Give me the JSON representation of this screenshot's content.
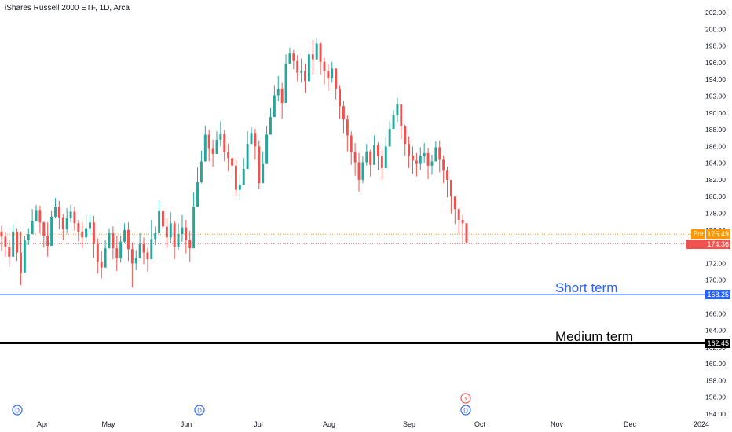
{
  "header": {
    "title": "iShares Russell 2000 ETF, 1D, Arca"
  },
  "colors": {
    "up": "#26a69a",
    "down": "#ef5350",
    "short_line": "#2962ff",
    "medium_line": "#000000",
    "pre_line": "#ff9800",
    "last_line": "#ef5350",
    "grid_text": "#131722"
  },
  "chart_data": {
    "type": "candlestick",
    "title": "iShares Russell 2000 ETF, 1D, Arca",
    "y_axis": {
      "ticks": [
        "154.00",
        "156.00",
        "158.00",
        "160.00",
        "162.00",
        "164.00",
        "166.00",
        "168.00",
        "170.00",
        "172.00",
        "174.00",
        "176.00",
        "178.00",
        "180.00",
        "182.00",
        "184.00",
        "186.00",
        "188.00",
        "190.00",
        "192.00",
        "194.00",
        "196.00",
        "198.00",
        "200.00",
        "202.00"
      ],
      "range": [
        153.4,
        203.2
      ]
    },
    "x_axis": {
      "labels": [
        "Apr",
        "May",
        "Jun",
        "Jul",
        "Aug",
        "Sep",
        "Oct",
        "Nov",
        "Dec",
        "2024"
      ]
    },
    "closes": [
      175.2,
      174.0,
      172.8,
      175.8,
      173.3,
      170.9,
      174.8,
      175.5,
      177.1,
      178.4,
      176.9,
      175.3,
      174.1,
      177.6,
      178.8,
      177.5,
      176.1,
      177.4,
      178.2,
      176.8,
      175.8,
      175.1,
      176.2,
      176.9,
      174.3,
      172.2,
      171.5,
      173.8,
      175.6,
      173.8,
      172.6,
      174.6,
      176.0,
      173.7,
      172.0,
      172.6,
      174.3,
      173.3,
      172.5,
      174.9,
      175.6,
      178.3,
      176.4,
      175.1,
      176.8,
      174.0,
      175.5,
      176.3,
      174.8,
      173.8,
      178.8,
      181.7,
      184.2,
      187.4,
      185.7,
      185.1,
      186.8,
      187.5,
      185.3,
      184.6,
      183.7,
      180.8,
      181.4,
      183.3,
      186.3,
      187.6,
      186.0,
      181.6,
      183.9,
      187.4,
      189.5,
      192.1,
      192.9,
      191.2,
      195.9,
      197.1,
      196.2,
      194.8,
      195.0,
      193.8,
      197.0,
      196.4,
      198.3,
      196.1,
      195.0,
      194.2,
      195.3,
      192.9,
      190.8,
      189.2,
      187.3,
      185.3,
      184.1,
      182.0,
      184.1,
      185.4,
      183.8,
      186.2,
      184.8,
      183.4,
      186.0,
      188.1,
      189.7,
      191.0,
      188.4,
      186.3,
      184.9,
      184.3,
      183.9,
      184.9,
      185.2,
      183.7,
      184.2,
      185.9,
      184.4,
      183.1,
      182.0,
      180.0,
      178.5,
      177.2,
      176.8,
      174.5
    ],
    "highs": [
      176.5,
      175.8,
      174.8,
      176.6,
      176.2,
      175.8,
      175.3,
      176.2,
      178.5,
      179.0,
      178.9,
      177.0,
      176.9,
      178.3,
      179.8,
      179.5,
      177.9,
      178.6,
      179.0,
      178.8,
      177.2,
      176.9,
      177.9,
      177.8,
      177.7,
      175.0,
      173.5,
      174.8,
      176.2,
      176.4,
      175.3,
      175.3,
      176.8,
      176.9,
      174.5,
      173.6,
      175.6,
      175.1,
      173.8,
      177.2,
      176.4,
      179.5,
      179.3,
      177.4,
      178.1,
      177.1,
      176.8,
      177.8,
      177.2,
      175.9,
      180.5,
      183.5,
      185.5,
      188.5,
      188.0,
      186.8,
      187.8,
      189.0,
      188.0,
      186.3,
      185.4,
      184.4,
      182.5,
      184.6,
      187.8,
      188.3,
      188.1,
      186.7,
      185.4,
      188.5,
      190.6,
      193.3,
      194.4,
      193.6,
      197.0,
      197.8,
      197.5,
      196.9,
      196.5,
      195.9,
      197.6,
      198.7,
      199.0,
      198.4,
      196.6,
      195.8,
      196.1,
      195.1,
      193.3,
      191.4,
      189.7,
      187.8,
      186.4,
      185.2,
      184.8,
      186.3,
      185.6,
      187.3,
      186.5,
      185.6,
      187.1,
      189.0,
      190.3,
      191.8,
      190.9,
      188.6,
      187.2,
      186.0,
      185.2,
      185.9,
      186.4,
      185.8,
      185.0,
      186.6,
      186.7,
      184.9,
      183.6,
      181.4,
      179.0,
      178.6,
      177.8,
      176.3
    ],
    "lows": [
      173.5,
      172.8,
      171.6,
      173.4,
      172.3,
      169.4,
      172.8,
      174.2,
      175.6,
      177.0,
      175.6,
      173.9,
      172.8,
      175.9,
      177.4,
      176.1,
      174.8,
      175.6,
      176.9,
      175.9,
      174.6,
      173.8,
      174.5,
      175.4,
      172.7,
      170.8,
      170.2,
      172.4,
      173.9,
      172.5,
      171.1,
      172.1,
      174.4,
      172.3,
      169.1,
      171.2,
      172.9,
      171.9,
      171.0,
      173.3,
      174.2,
      176.0,
      175.0,
      173.8,
      174.4,
      172.5,
      173.6,
      174.6,
      173.2,
      172.2,
      176.5,
      179.8,
      181.6,
      184.8,
      184.2,
      183.6,
      185.1,
      186.0,
      184.2,
      183.0,
      182.4,
      180.1,
      179.6,
      181.7,
      184.3,
      186.3,
      184.4,
      180.9,
      182.1,
      185.9,
      188.3,
      190.7,
      191.4,
      189.3,
      194.2,
      195.9,
      195.2,
      193.8,
      193.6,
      192.4,
      194.9,
      194.6,
      196.3,
      194.6,
      193.4,
      192.6,
      193.6,
      191.6,
      189.3,
      187.6,
      185.4,
      183.8,
      182.5,
      180.6,
      181.6,
      183.7,
      182.4,
      184.1,
      183.2,
      182.0,
      184.2,
      186.5,
      188.2,
      188.9,
      186.9,
      184.9,
      183.4,
      182.7,
      182.4,
      183.2,
      184.0,
      182.1,
      182.6,
      184.2,
      182.9,
      181.6,
      179.9,
      178.0,
      176.7,
      175.5,
      174.3,
      174.3
    ]
  },
  "price_labels": {
    "pre_tag": "Pre",
    "pre_value": "175.49",
    "last_value": "174.36",
    "short_value": "168.25",
    "medium_value": "162.45"
  },
  "levels": {
    "pre": 175.49,
    "last": 174.36,
    "short": 168.25,
    "medium": 162.45
  },
  "annotations": {
    "short_term": "Short term",
    "medium_term": "Medium term"
  },
  "markers": {
    "dividend_letter": "D",
    "earnings_glyph": "⚡"
  }
}
